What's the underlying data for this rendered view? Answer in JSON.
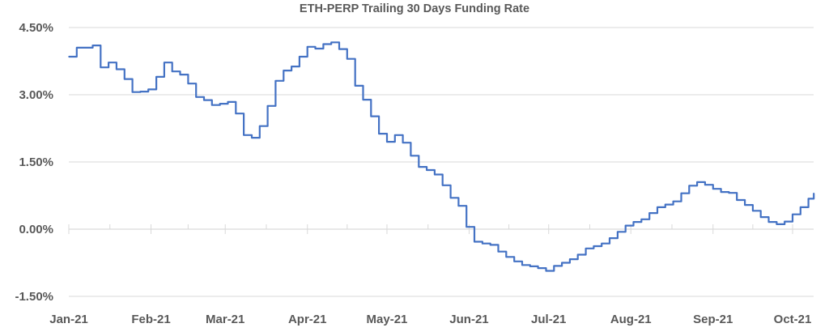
{
  "chart_data": {
    "type": "line",
    "title": "ETH-PERP Trailing 30 Days Funding Rate",
    "xlabel": "",
    "ylabel": "",
    "ylim": [
      -1.5,
      4.5
    ],
    "xlim": [
      "2021-01-01",
      "2021-10-01"
    ],
    "grid": true,
    "legend": "none",
    "line_color": "#4472C4",
    "y_ticks": [
      "4.50%",
      "3.00%",
      "1.50%",
      "0.00%",
      "-1.50%"
    ],
    "y_tick_values": [
      4.5,
      3.0,
      1.5,
      0.0,
      -1.5
    ],
    "x_ticks": [
      "Jan-21",
      "Feb-21",
      "Mar-21",
      "Apr-21",
      "May-21",
      "Jun-21",
      "Jul-21",
      "Aug-21",
      "Sep-21",
      "Oct-21"
    ],
    "x_tick_dates": [
      "2021-01-01",
      "2021-02-01",
      "2021-03-01",
      "2021-04-01",
      "2021-05-01",
      "2021-06-01",
      "2021-07-01",
      "2021-08-01",
      "2021-09-01",
      "2021-10-01"
    ],
    "series": [
      {
        "x": [
          "2021-01-01",
          "2021-01-04",
          "2021-01-07",
          "2021-01-10",
          "2021-01-13",
          "2021-01-16",
          "2021-01-19",
          "2021-01-22",
          "2021-01-25",
          "2021-01-28",
          "2021-01-31",
          "2021-02-03",
          "2021-02-06",
          "2021-02-09",
          "2021-02-12",
          "2021-02-15",
          "2021-02-18",
          "2021-02-21",
          "2021-02-24",
          "2021-02-27",
          "2021-03-02",
          "2021-03-05",
          "2021-03-08",
          "2021-03-11",
          "2021-03-14",
          "2021-03-17",
          "2021-03-20",
          "2021-03-23",
          "2021-03-26",
          "2021-03-29",
          "2021-04-01",
          "2021-04-04",
          "2021-04-07",
          "2021-04-10",
          "2021-04-13",
          "2021-04-16",
          "2021-04-19",
          "2021-04-22",
          "2021-04-25",
          "2021-04-28",
          "2021-05-01",
          "2021-05-04",
          "2021-05-07",
          "2021-05-10",
          "2021-05-13",
          "2021-05-16",
          "2021-05-19",
          "2021-05-22",
          "2021-05-25",
          "2021-05-28",
          "2021-05-31",
          "2021-06-03",
          "2021-06-06",
          "2021-06-09",
          "2021-06-12",
          "2021-06-15",
          "2021-06-18",
          "2021-06-21",
          "2021-06-24",
          "2021-06-27",
          "2021-06-30",
          "2021-07-03",
          "2021-07-06",
          "2021-07-09",
          "2021-07-12",
          "2021-07-15",
          "2021-07-18",
          "2021-07-21",
          "2021-07-24",
          "2021-07-27",
          "2021-07-30",
          "2021-08-02",
          "2021-08-05",
          "2021-08-08",
          "2021-08-11",
          "2021-08-14",
          "2021-08-17",
          "2021-08-20",
          "2021-08-23",
          "2021-08-26",
          "2021-08-29",
          "2021-09-01",
          "2021-09-04",
          "2021-09-07",
          "2021-09-10",
          "2021-09-13",
          "2021-09-16",
          "2021-09-19",
          "2021-09-22",
          "2021-09-25",
          "2021-09-28",
          "2021-10-01",
          "2021-10-04",
          "2021-10-07",
          "2021-10-09"
        ],
        "y": [
          3.85,
          4.05,
          4.05,
          4.1,
          3.61,
          3.72,
          3.57,
          3.35,
          3.06,
          3.07,
          3.12,
          3.4,
          3.72,
          3.52,
          3.45,
          3.25,
          2.95,
          2.88,
          2.77,
          2.8,
          2.84,
          2.58,
          2.1,
          2.04,
          2.3,
          2.75,
          3.31,
          3.54,
          3.63,
          3.85,
          4.07,
          4.03,
          4.13,
          4.17,
          4.02,
          3.8,
          3.2,
          2.89,
          2.52,
          2.13,
          1.95,
          2.1,
          1.93,
          1.64,
          1.39,
          1.32,
          1.22,
          0.98,
          0.7,
          0.52,
          0.05,
          -0.28,
          -0.32,
          -0.35,
          -0.5,
          -0.62,
          -0.72,
          -0.8,
          -0.83,
          -0.87,
          -0.93,
          -0.82,
          -0.75,
          -0.67,
          -0.57,
          -0.43,
          -0.38,
          -0.32,
          -0.2,
          -0.06,
          0.08,
          0.16,
          0.22,
          0.36,
          0.49,
          0.55,
          0.62,
          0.8,
          0.97,
          1.05,
          0.99,
          0.9,
          0.83,
          0.81,
          0.65,
          0.54,
          0.41,
          0.27,
          0.16,
          0.11,
          0.17,
          0.33,
          0.49,
          0.68,
          0.8
        ]
      }
    ]
  }
}
